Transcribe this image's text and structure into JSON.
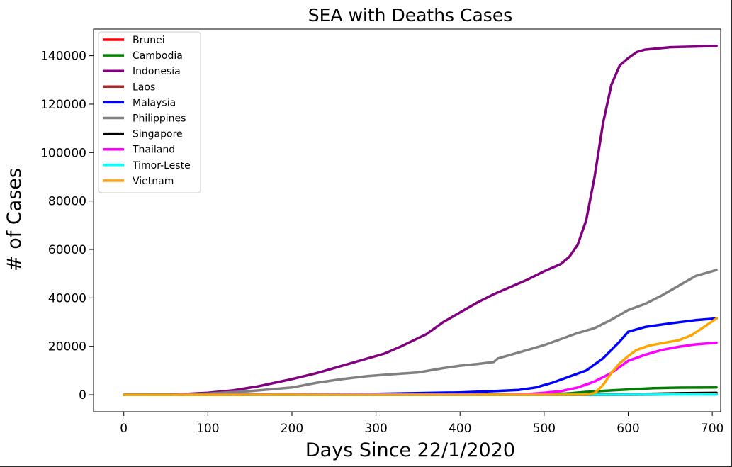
{
  "chart_data": {
    "type": "line",
    "title": "SEA with Deaths Cases",
    "xlabel": "Days Since 22/1/2020",
    "ylabel": "# of Cases",
    "xlim": [
      -36,
      710
    ],
    "ylim": [
      -7000,
      151000
    ],
    "xticks": [
      0,
      100,
      200,
      300,
      400,
      500,
      600,
      700
    ],
    "yticks": [
      0,
      20000,
      40000,
      60000,
      80000,
      100000,
      120000,
      140000
    ],
    "grid": false,
    "legend_position": "top-left",
    "series": [
      {
        "name": "Brunei",
        "color": "#ff0000",
        "points": [
          [
            0,
            0
          ],
          [
            100,
            3
          ],
          [
            200,
            3
          ],
          [
            300,
            3
          ],
          [
            400,
            3
          ],
          [
            500,
            3
          ],
          [
            560,
            3
          ],
          [
            600,
            30
          ],
          [
            650,
            80
          ],
          [
            705,
            90
          ]
        ]
      },
      {
        "name": "Cambodia",
        "color": "#008000",
        "points": [
          [
            0,
            0
          ],
          [
            400,
            0
          ],
          [
            470,
            0
          ],
          [
            500,
            100
          ],
          [
            530,
            600
          ],
          [
            550,
            1200
          ],
          [
            580,
            1800
          ],
          [
            600,
            2200
          ],
          [
            630,
            2700
          ],
          [
            660,
            2950
          ],
          [
            705,
            3000
          ]
        ]
      },
      {
        "name": "Indonesia",
        "color": "#800080",
        "points": [
          [
            0,
            0
          ],
          [
            50,
            0
          ],
          [
            70,
            300
          ],
          [
            100,
            800
          ],
          [
            130,
            1800
          ],
          [
            160,
            3500
          ],
          [
            180,
            5000
          ],
          [
            200,
            6500
          ],
          [
            230,
            9000
          ],
          [
            260,
            12000
          ],
          [
            290,
            15000
          ],
          [
            310,
            17000
          ],
          [
            330,
            20000
          ],
          [
            360,
            25000
          ],
          [
            380,
            30000
          ],
          [
            400,
            34000
          ],
          [
            420,
            38000
          ],
          [
            440,
            41500
          ],
          [
            460,
            44500
          ],
          [
            480,
            47500
          ],
          [
            500,
            51000
          ],
          [
            520,
            54000
          ],
          [
            530,
            57000
          ],
          [
            540,
            62000
          ],
          [
            550,
            72000
          ],
          [
            560,
            90000
          ],
          [
            570,
            112000
          ],
          [
            580,
            128000
          ],
          [
            590,
            136000
          ],
          [
            600,
            139000
          ],
          [
            610,
            141500
          ],
          [
            620,
            142500
          ],
          [
            650,
            143500
          ],
          [
            705,
            144000
          ]
        ]
      },
      {
        "name": "Laos",
        "color": "#a52a2a",
        "points": [
          [
            0,
            0
          ],
          [
            450,
            0
          ],
          [
            560,
            0
          ],
          [
            600,
            20
          ],
          [
            650,
            90
          ],
          [
            705,
            150
          ]
        ]
      },
      {
        "name": "Malaysia",
        "color": "#0000ff",
        "points": [
          [
            0,
            0
          ],
          [
            100,
            100
          ],
          [
            200,
            150
          ],
          [
            300,
            400
          ],
          [
            400,
            1000
          ],
          [
            440,
            1500
          ],
          [
            470,
            2000
          ],
          [
            490,
            3000
          ],
          [
            510,
            5000
          ],
          [
            530,
            7500
          ],
          [
            550,
            10000
          ],
          [
            570,
            15000
          ],
          [
            590,
            22000
          ],
          [
            600,
            26000
          ],
          [
            620,
            28000
          ],
          [
            650,
            29500
          ],
          [
            680,
            30800
          ],
          [
            705,
            31500
          ]
        ]
      },
      {
        "name": "Philippines",
        "color": "#808080",
        "points": [
          [
            0,
            0
          ],
          [
            60,
            0
          ],
          [
            100,
            500
          ],
          [
            150,
            1500
          ],
          [
            200,
            3000
          ],
          [
            230,
            5000
          ],
          [
            260,
            6500
          ],
          [
            290,
            7700
          ],
          [
            320,
            8500
          ],
          [
            350,
            9200
          ],
          [
            380,
            11000
          ],
          [
            400,
            12000
          ],
          [
            420,
            12700
          ],
          [
            440,
            13500
          ],
          [
            445,
            15000
          ],
          [
            470,
            17500
          ],
          [
            500,
            20500
          ],
          [
            520,
            23000
          ],
          [
            540,
            25500
          ],
          [
            560,
            27500
          ],
          [
            580,
            31000
          ],
          [
            600,
            35000
          ],
          [
            620,
            37500
          ],
          [
            640,
            41000
          ],
          [
            660,
            45000
          ],
          [
            680,
            49000
          ],
          [
            705,
            51500
          ]
        ]
      },
      {
        "name": "Singapore",
        "color": "#000000",
        "points": [
          [
            0,
            0
          ],
          [
            100,
            20
          ],
          [
            200,
            28
          ],
          [
            300,
            28
          ],
          [
            400,
            30
          ],
          [
            500,
            34
          ],
          [
            550,
            36
          ],
          [
            580,
            100
          ],
          [
            600,
            200
          ],
          [
            640,
            500
          ],
          [
            670,
            700
          ],
          [
            705,
            780
          ]
        ]
      },
      {
        "name": "Thailand",
        "color": "#ff00ff",
        "points": [
          [
            0,
            0
          ],
          [
            100,
            58
          ],
          [
            300,
            60
          ],
          [
            400,
            65
          ],
          [
            450,
            94
          ],
          [
            480,
            300
          ],
          [
            500,
            800
          ],
          [
            520,
            1500
          ],
          [
            540,
            3000
          ],
          [
            560,
            5500
          ],
          [
            580,
            9000
          ],
          [
            600,
            14000
          ],
          [
            620,
            16500
          ],
          [
            640,
            18500
          ],
          [
            660,
            19800
          ],
          [
            680,
            20800
          ],
          [
            705,
            21500
          ]
        ]
      },
      {
        "name": "Timor-Leste",
        "color": "#00ffff",
        "points": [
          [
            0,
            0
          ],
          [
            400,
            0
          ],
          [
            500,
            0
          ],
          [
            560,
            10
          ],
          [
            600,
            50
          ],
          [
            650,
            100
          ],
          [
            705,
            120
          ]
        ]
      },
      {
        "name": "Vietnam",
        "color": "#ffa500",
        "points": [
          [
            0,
            0
          ],
          [
            100,
            0
          ],
          [
            200,
            20
          ],
          [
            300,
            35
          ],
          [
            400,
            35
          ],
          [
            500,
            35
          ],
          [
            550,
            80
          ],
          [
            560,
            700
          ],
          [
            570,
            4000
          ],
          [
            580,
            9000
          ],
          [
            590,
            13000
          ],
          [
            600,
            16000
          ],
          [
            610,
            18500
          ],
          [
            625,
            20300
          ],
          [
            640,
            21300
          ],
          [
            660,
            22500
          ],
          [
            675,
            24500
          ],
          [
            690,
            28000
          ],
          [
            705,
            31500
          ]
        ]
      }
    ]
  }
}
